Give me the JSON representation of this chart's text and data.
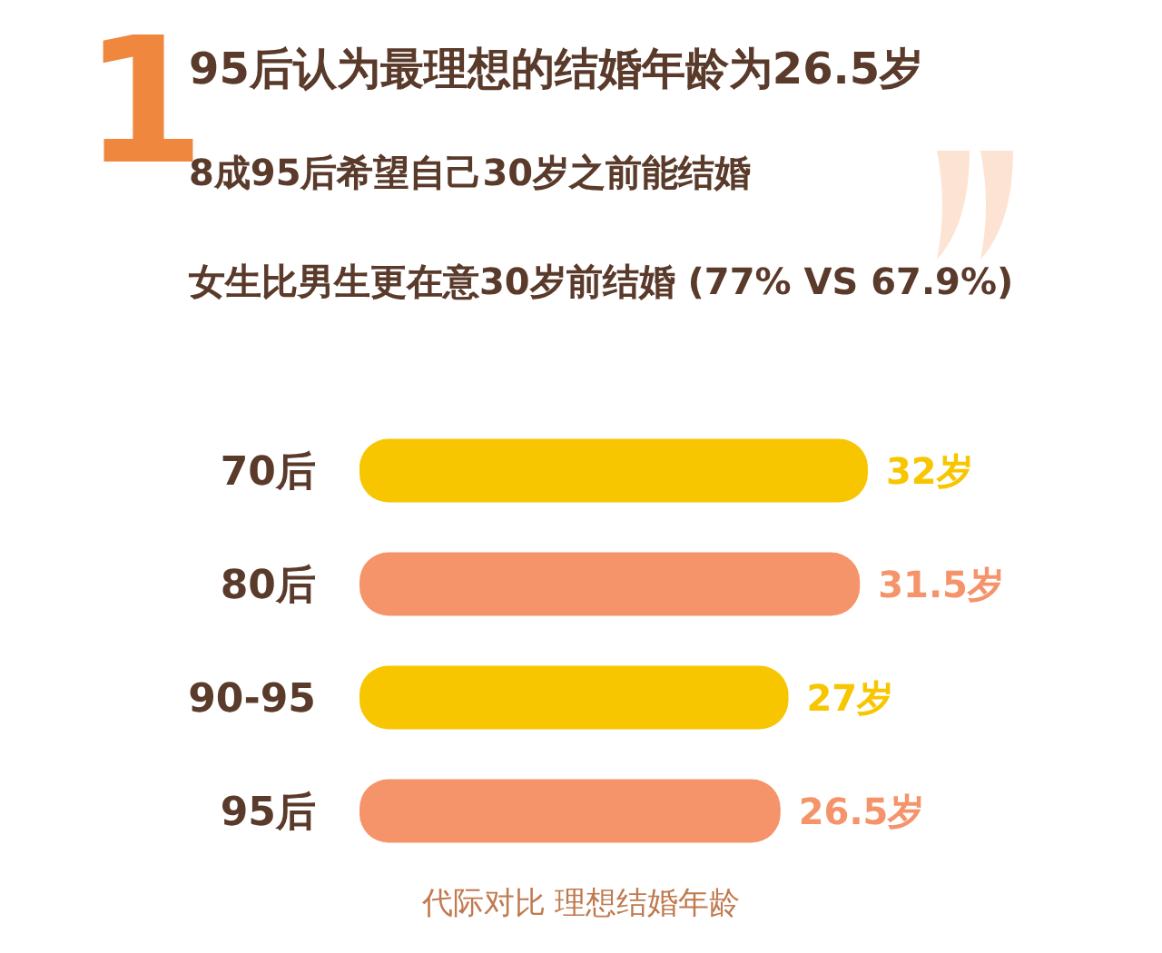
{
  "chart_data": {
    "type": "bar",
    "orientation": "horizontal",
    "title": "95后认为最理想的结婚年龄为26.5岁",
    "subtitle": "8成95后希望自己30岁之前能结婚",
    "annotations": [
      "1",
      "女生比男生更在意30岁前结婚 (77% VS 67.9%)"
    ],
    "xlabel": "代际对比 理想结婚年龄",
    "categories": [
      "70后",
      "80后",
      "90-95",
      "95后"
    ],
    "values": [
      32,
      31.5,
      27,
      26.5
    ],
    "colors": [
      "#f7c600",
      "#f5946a",
      "#f7c600",
      "#f5946a"
    ],
    "value_labels": [
      "32岁",
      "31.5岁",
      "27岁",
      "26.5岁"
    ]
  }
}
